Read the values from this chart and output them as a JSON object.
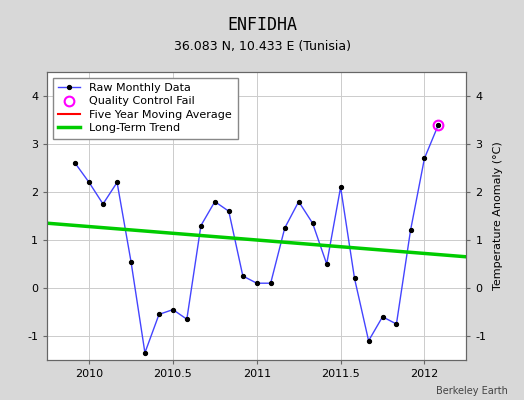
{
  "title": "ENFIDHA",
  "subtitle": "36.083 N, 10.433 E (Tunisia)",
  "ylabel": "Temperature Anomaly (°C)",
  "xlabel_credit": "Berkeley Earth",
  "background_color": "#d8d8d8",
  "plot_background": "#ffffff",
  "raw_x": [
    2009.917,
    2010.0,
    2010.083,
    2010.167,
    2010.25,
    2010.333,
    2010.417,
    2010.5,
    2010.583,
    2010.667,
    2010.75,
    2010.833,
    2010.917,
    2011.0,
    2011.083,
    2011.167,
    2011.25,
    2011.333,
    2011.417,
    2011.5,
    2011.583,
    2011.667,
    2011.75,
    2011.833,
    2011.917,
    2012.0,
    2012.083
  ],
  "raw_y": [
    2.6,
    2.2,
    1.75,
    2.2,
    0.55,
    -1.35,
    -0.55,
    -0.45,
    -0.65,
    1.3,
    1.8,
    1.6,
    0.25,
    0.1,
    0.1,
    1.25,
    1.8,
    1.35,
    0.5,
    2.1,
    0.2,
    -1.1,
    -0.6,
    -0.75,
    1.2,
    2.7,
    3.4
  ],
  "qc_fail_x": [
    2012.083
  ],
  "qc_fail_y": [
    3.4
  ],
  "trend_x": [
    2009.75,
    2012.25
  ],
  "trend_y": [
    1.35,
    0.65
  ],
  "xlim": [
    2009.75,
    2012.25
  ],
  "ylim": [
    -1.5,
    4.5
  ],
  "yticks": [
    -1,
    0,
    1,
    2,
    3,
    4
  ],
  "xticks": [
    2010,
    2010.5,
    2011,
    2011.5,
    2012
  ],
  "xtick_labels": [
    "2010",
    "2010.5",
    "2011",
    "2011.5",
    "2012"
  ],
  "raw_line_color": "#4444ff",
  "raw_marker_color": "#000000",
  "trend_color": "#00cc00",
  "moving_avg_color": "#ff0000",
  "qc_color": "#ff00ff",
  "grid_color": "#cccccc",
  "title_fontsize": 12,
  "subtitle_fontsize": 9,
  "label_fontsize": 8,
  "tick_fontsize": 8,
  "legend_fontsize": 8
}
